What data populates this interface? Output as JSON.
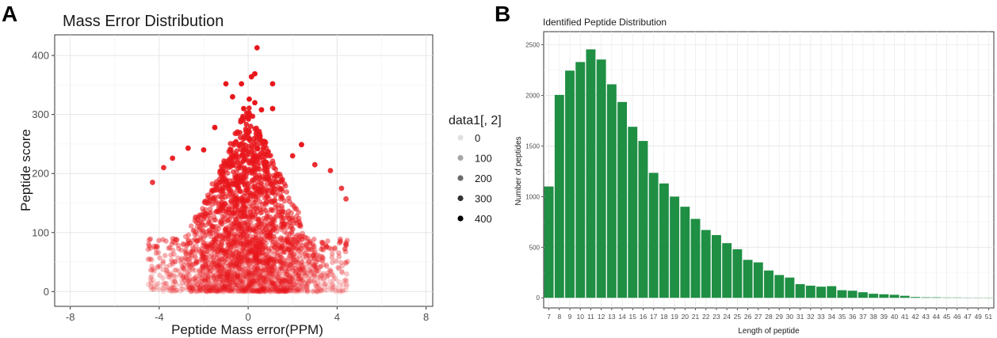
{
  "chart_data": [
    {
      "panel_label": "A",
      "type": "scatter",
      "title": "Mass Error Distribution",
      "xlabel": "Peptide Mass error(PPM)",
      "ylabel": "Peptide score",
      "xlim": [
        -8.7,
        8.3
      ],
      "ylim": [
        -25,
        435
      ],
      "x_ticks": [
        -8,
        -4,
        0,
        4,
        8
      ],
      "x_tick_labels": [
        "-8",
        "-4",
        "0",
        "4",
        "8"
      ],
      "y_ticks": [
        0,
        100,
        200,
        300,
        400
      ],
      "y_tick_labels": [
        "0",
        "100",
        "200",
        "300",
        "400"
      ],
      "grid": true,
      "point_color": "#e8161b",
      "legend": {
        "title": "data1[, 2]",
        "placement": "right",
        "entries": [
          {
            "label": "0",
            "alpha": 0.12
          },
          {
            "label": "100",
            "alpha": 0.35
          },
          {
            "label": "200",
            "alpha": 0.58
          },
          {
            "label": "300",
            "alpha": 0.8
          },
          {
            "label": "400",
            "alpha": 1.0
          }
        ]
      },
      "distribution": {
        "x_min": -4.5,
        "x_max": 4.5,
        "y_min": 0,
        "y_max": 300,
        "density_note": "dense cloud centred at x=0, score decreasing toward the error extremes"
      },
      "outliers": [
        {
          "x": 0.4,
          "y": 413
        },
        {
          "x": 0.3,
          "y": 369
        },
        {
          "x": 0.15,
          "y": 364
        },
        {
          "x": -0.3,
          "y": 352
        },
        {
          "x": 1.1,
          "y": 352
        },
        {
          "x": -1.0,
          "y": 352
        },
        {
          "x": -0.7,
          "y": 330
        },
        {
          "x": 0.05,
          "y": 326
        },
        {
          "x": 0.3,
          "y": 320
        },
        {
          "x": -0.2,
          "y": 310
        },
        {
          "x": 0.6,
          "y": 308
        },
        {
          "x": 1.1,
          "y": 310
        },
        {
          "x": -1.5,
          "y": 278
        },
        {
          "x": -3.4,
          "y": 226
        },
        {
          "x": -2.7,
          "y": 243
        },
        {
          "x": -4.3,
          "y": 185
        },
        {
          "x": 3.7,
          "y": 205
        },
        {
          "x": 4.2,
          "y": 175
        },
        {
          "x": 2.4,
          "y": 249
        },
        {
          "x": 4.4,
          "y": 157
        },
        {
          "x": -2.0,
          "y": 240
        },
        {
          "x": 2.0,
          "y": 230
        },
        {
          "x": -3.8,
          "y": 210
        },
        {
          "x": 3.0,
          "y": 215
        }
      ]
    },
    {
      "panel_label": "B",
      "type": "bar",
      "title": "Identified Peptide Distribution",
      "xlabel": "Length of peptide",
      "ylabel": "Number of peptides",
      "ylim": [
        -100,
        2630
      ],
      "y_ticks": [
        0,
        500,
        1000,
        1500,
        2000,
        2500
      ],
      "y_tick_labels": [
        "0",
        "500",
        "1000",
        "1500",
        "2000",
        "2500"
      ],
      "bar_color": "#1f8f44",
      "grid": true,
      "categories": [
        "7",
        "8",
        "9",
        "10",
        "11",
        "12",
        "13",
        "14",
        "15",
        "16",
        "17",
        "18",
        "19",
        "20",
        "21",
        "22",
        "23",
        "24",
        "25",
        "26",
        "27",
        "28",
        "29",
        "30",
        "31",
        "32",
        "33",
        "34",
        "35",
        "36",
        "37",
        "38",
        "39",
        "40",
        "41",
        "42",
        "43",
        "44",
        "45",
        "46",
        "47",
        "49",
        "51"
      ],
      "values": [
        1100,
        2005,
        2245,
        2330,
        2455,
        2355,
        2110,
        1935,
        1690,
        1550,
        1235,
        1130,
        1000,
        900,
        780,
        670,
        620,
        540,
        480,
        375,
        350,
        270,
        225,
        200,
        135,
        120,
        110,
        115,
        75,
        70,
        55,
        40,
        35,
        30,
        20,
        8,
        5,
        5,
        3,
        3,
        2,
        2,
        1
      ]
    }
  ]
}
